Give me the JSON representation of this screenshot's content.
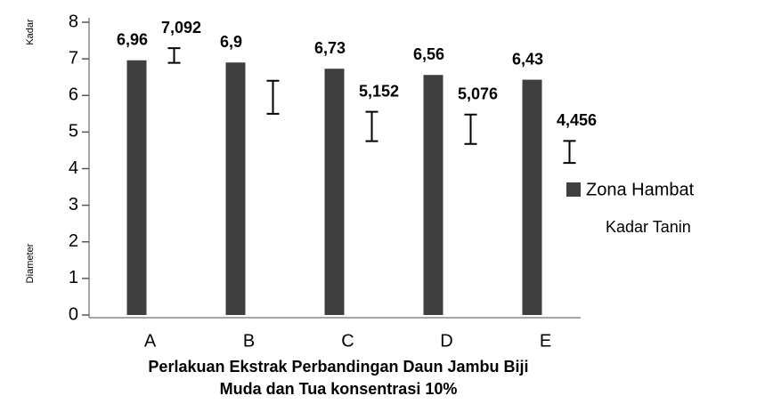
{
  "chart_data": {
    "type": "bar",
    "y_axis_labels": [
      "Kadar",
      "Diameter"
    ],
    "xlabel": [
      "Perlakuan Ekstrak Perbandingan Daun Jambu Biji",
      "Muda dan Tua konsentrasi 10%"
    ],
    "categories": [
      "A",
      "B",
      "C",
      "D",
      "E"
    ],
    "series": [
      {
        "name": "Zona Hambat",
        "color": "#3f3f3f",
        "values": [
          6.96,
          6.9,
          6.73,
          6.56,
          6.43
        ],
        "value_labels": [
          "6,96",
          "6,9",
          "6,73",
          "6,56",
          "6,43"
        ]
      },
      {
        "name": "Kadar Tanin",
        "color": "#000000",
        "values": [
          7.092,
          5.95,
          5.152,
          5.076,
          4.456
        ],
        "errors": [
          0.2,
          0.45,
          0.4,
          0.4,
          0.3
        ],
        "value_labels": [
          "7,092",
          null,
          "5,152",
          "5,076",
          "4,456"
        ]
      }
    ],
    "ylim": [
      0,
      8
    ],
    "yticks": [
      0,
      1,
      2,
      3,
      4,
      5,
      6,
      7,
      8
    ],
    "grid": false,
    "legend": "right"
  }
}
